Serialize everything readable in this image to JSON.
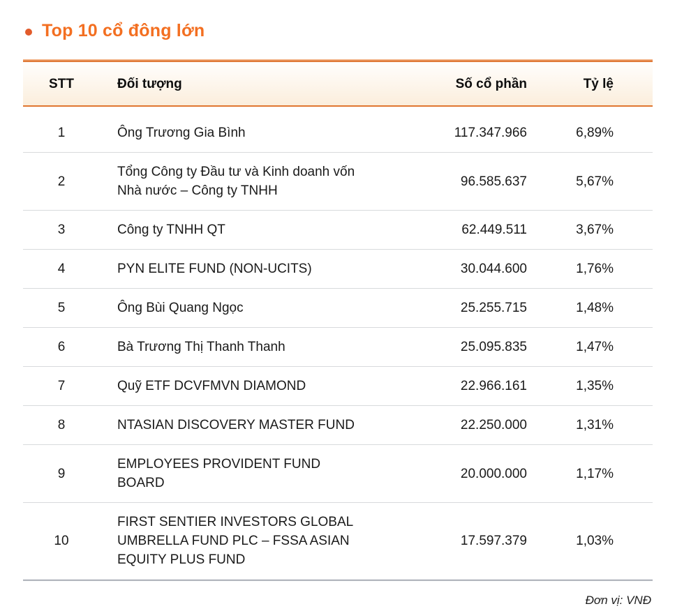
{
  "page": {
    "title": "Top 10 cổ đông lớn",
    "unit_note": "Đơn vị: VNĐ"
  },
  "colors": {
    "title_orange": "#f36f21",
    "bullet_orange": "#e25b2b",
    "header_border_orange": "#e0762f",
    "header_bg_top": "#fffefd",
    "header_bg_bottom": "#fbeedc",
    "row_separator": "#d8dadc",
    "table_bottom_border": "#b3b7be",
    "text": "#1a1a1a"
  },
  "table": {
    "columns": {
      "stt": "STT",
      "name": "Đối tượng",
      "shares": "Số cổ phần",
      "ratio": "Tỷ lệ"
    },
    "rows": [
      {
        "stt": "1",
        "name": "Ông Trương Gia Bình",
        "shares": "117.347.966",
        "ratio": "6,89%"
      },
      {
        "stt": "2",
        "name": "Tổng Công ty Đầu tư và Kinh doanh vốn Nhà nước – Công ty TNHH",
        "shares": "96.585.637",
        "ratio": "5,67%"
      },
      {
        "stt": "3",
        "name": "Công ty TNHH QT",
        "shares": "62.449.511",
        "ratio": "3,67%"
      },
      {
        "stt": "4",
        "name": "PYN ELITE FUND (NON-UCITS)",
        "shares": "30.044.600",
        "ratio": "1,76%"
      },
      {
        "stt": "5",
        "name": "Ông Bùi Quang Ngọc",
        "shares": "25.255.715",
        "ratio": "1,48%"
      },
      {
        "stt": "6",
        "name": "Bà Trương Thị Thanh Thanh",
        "shares": "25.095.835",
        "ratio": "1,47%"
      },
      {
        "stt": "7",
        "name": "Quỹ ETF DCVFMVN DIAMOND",
        "shares": "22.966.161",
        "ratio": "1,35%"
      },
      {
        "stt": "8",
        "name": "NTASIAN DISCOVERY MASTER FUND",
        "shares": "22.250.000",
        "ratio": "1,31%"
      },
      {
        "stt": "9",
        "name": "EMPLOYEES PROVIDENT FUND BOARD",
        "shares": "20.000.000",
        "ratio": "1,17%"
      },
      {
        "stt": "10",
        "name": "FIRST SENTIER INVESTORS GLOBAL UMBRELLA FUND PLC – FSSA ASIAN EQUITY PLUS FUND",
        "shares": "17.597.379",
        "ratio": "1,03%"
      }
    ]
  }
}
